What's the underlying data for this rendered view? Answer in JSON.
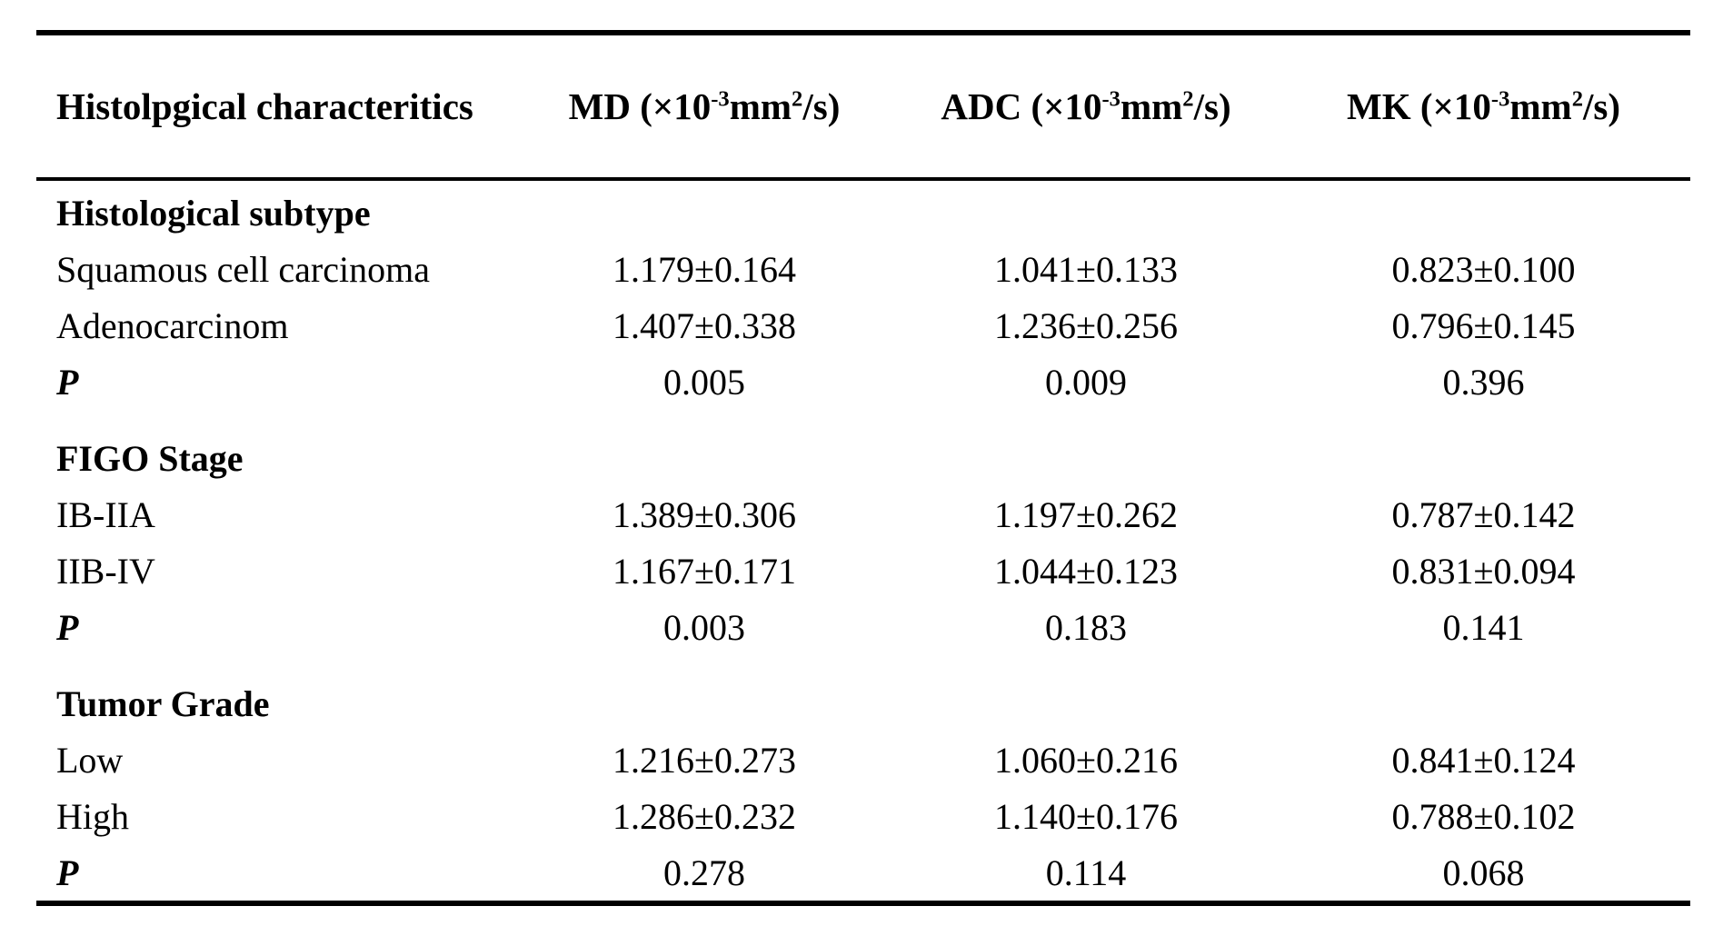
{
  "headers": {
    "characteristic": "Histolpgical characteritics",
    "md": {
      "pre": "MD (×10",
      "exp": "-3",
      "mid": "mm",
      "sq": "2",
      "post": "/s)"
    },
    "adc": {
      "pre": "ADC (×10",
      "exp": "-3",
      "mid": "mm",
      "sq": "2",
      "post": "/s)"
    },
    "mk": {
      "pre": "MK (×10",
      "exp": "-3",
      "mid": "mm",
      "sq": "2",
      "post": "/s)"
    }
  },
  "sections": [
    {
      "title": "Histological subtype",
      "rows": [
        {
          "label": "Squamous cell carcinoma",
          "md": "1.179±0.164",
          "adc": "1.041±0.133",
          "mk": "0.823±0.100"
        },
        {
          "label": "Adenocarcinom",
          "md": "1.407±0.338",
          "adc": "1.236±0.256",
          "mk": "0.796±0.145"
        }
      ],
      "p": {
        "label": "P",
        "md": "0.005",
        "adc": "0.009",
        "mk": "0.396"
      }
    },
    {
      "title": "FIGO Stage",
      "rows": [
        {
          "label": "IB-IIA",
          "md": "1.389±0.306",
          "adc": "1.197±0.262",
          "mk": "0.787±0.142"
        },
        {
          "label": "IIB-IV",
          "md": "1.167±0.171",
          "adc": "1.044±0.123",
          "mk": "0.831±0.094"
        }
      ],
      "p": {
        "label": "P",
        "md": "0.003",
        "adc": "0.183",
        "mk": "0.141"
      }
    },
    {
      "title": "Tumor Grade",
      "rows": [
        {
          "label": "Low",
          "md": "1.216±0.273",
          "adc": "1.060±0.216",
          "mk": "0.841±0.124"
        },
        {
          "label": "High",
          "md": "1.286±0.232",
          "adc": "1.140±0.176",
          "mk": "0.788±0.102"
        }
      ],
      "p": {
        "label": "P",
        "md": "0.278",
        "adc": "0.114",
        "mk": "0.068"
      }
    }
  ],
  "chart_data": {
    "type": "table",
    "columns": [
      "Histolpgical characteritics",
      "MD (×10^-3 mm^2/s)",
      "ADC (×10^-3 mm^2/s)",
      "MK (×10^-3 mm^2/s)"
    ],
    "rows": [
      [
        "Histological subtype",
        "",
        "",
        ""
      ],
      [
        "Squamous cell carcinoma",
        "1.179±0.164",
        "1.041±0.133",
        "0.823±0.100"
      ],
      [
        "Adenocarcinom",
        "1.407±0.338",
        "1.236±0.256",
        "0.796±0.145"
      ],
      [
        "P",
        "0.005",
        "0.009",
        "0.396"
      ],
      [
        "FIGO Stage",
        "",
        "",
        ""
      ],
      [
        "IB-IIA",
        "1.389±0.306",
        "1.197±0.262",
        "0.787±0.142"
      ],
      [
        "IIB-IV",
        "1.167±0.171",
        "1.044±0.123",
        "0.831±0.094"
      ],
      [
        "P",
        "0.003",
        "0.183",
        "0.141"
      ],
      [
        "Tumor Grade",
        "",
        "",
        ""
      ],
      [
        "Low",
        "1.216±0.273",
        "1.060±0.216",
        "0.841±0.124"
      ],
      [
        "High",
        "1.286±0.232",
        "1.140±0.176",
        "0.788±0.102"
      ],
      [
        "P",
        "0.278",
        "0.114",
        "0.068"
      ]
    ]
  }
}
